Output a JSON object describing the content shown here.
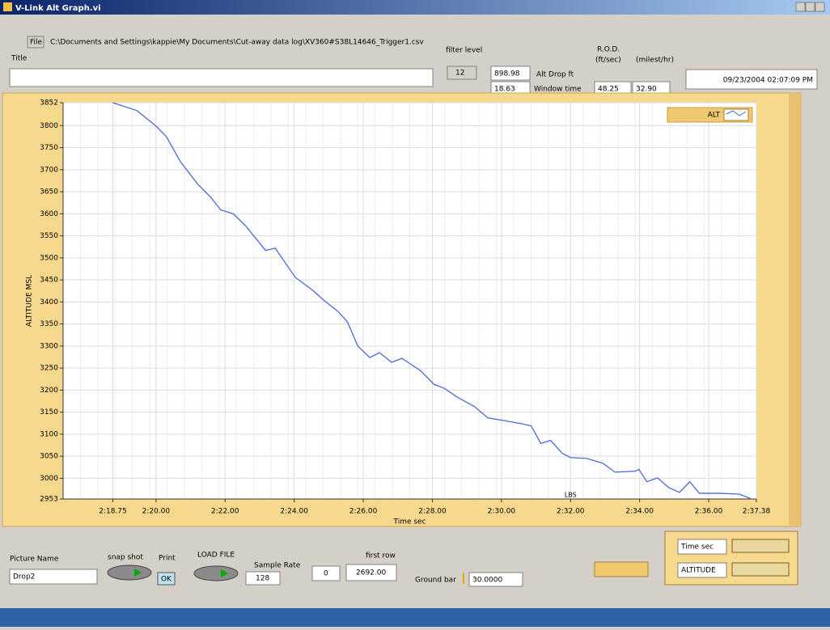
{
  "window": {
    "title": "V-Link Alt Graph.vi"
  },
  "file": {
    "button": "File",
    "path": "C:\\Documents and Settings\\kappie\\My Documents\\Cut-away data log\\XV360#S38L14646_Trigger1.csv"
  },
  "title_label": "Title",
  "filter_level": {
    "label": "filter level",
    "value": "12"
  },
  "alt_drop": {
    "label": "Alt Drop ft",
    "value": "898.98"
  },
  "window_time": {
    "label": "Window time",
    "value": "18.63"
  },
  "rod": {
    "label": "R.O.D.",
    "ft_units": "(ft/sec)",
    "mi_units": "(milest/hr)",
    "ft_value": "48.25",
    "mi_value": "32.90"
  },
  "timestamp": "09/23/2004 02:07:09 PM",
  "chart_data": {
    "type": "line",
    "xlabel": "Time sec",
    "ylabel": "ALTITUDE MSL",
    "annotation": "LBS",
    "grid": true,
    "x": [
      138.75,
      139.45,
      140.0,
      140.3,
      140.7,
      141.2,
      141.6,
      141.87,
      142.24,
      142.6,
      143.17,
      143.45,
      144.03,
      144.56,
      144.87,
      145.26,
      145.54,
      145.84,
      146.19,
      146.47,
      146.82,
      147.12,
      147.66,
      148.05,
      148.35,
      148.7,
      149.21,
      149.61,
      150.14,
      150.63,
      150.86,
      151.14,
      151.42,
      151.77,
      152.0,
      152.47,
      152.94,
      153.28,
      153.87,
      153.98,
      154.21,
      154.52,
      154.84,
      155.15,
      155.45,
      155.73,
      156.31,
      156.89,
      157.24
    ],
    "series": [
      {
        "name": "ALT",
        "color": "#4a6ad8",
        "values": [
          3852,
          3834,
          3799,
          3775,
          3719,
          3668,
          3636,
          3609,
          3600,
          3572,
          3517,
          3522,
          3456,
          3425,
          3403,
          3379,
          3355,
          3300,
          3274,
          3285,
          3263,
          3272,
          3244,
          3213,
          3204,
          3185,
          3163,
          3137,
          3130,
          3123,
          3119,
          3079,
          3086,
          3056,
          3047,
          3045,
          3034,
          3014,
          3016,
          3020,
          2992,
          3001,
          2979,
          2968,
          2992,
          2966,
          2966,
          2964,
          2953
        ]
      }
    ],
    "xlim": [
      137.31,
      157.38
    ],
    "xticks": [
      {
        "value": 138.75,
        "label": "2:18.75"
      },
      {
        "value": 140,
        "label": "2:20.00"
      },
      {
        "value": 142,
        "label": "2:22.00"
      },
      {
        "value": 144,
        "label": "2:24.00"
      },
      {
        "value": 146,
        "label": "2:26.00"
      },
      {
        "value": 148,
        "label": "2:28.00"
      },
      {
        "value": 150,
        "label": "2:30.00"
      },
      {
        "value": 152,
        "label": "2:32.00"
      },
      {
        "value": 154,
        "label": "2:34.00"
      },
      {
        "value": 156,
        "label": "2:36.00"
      },
      {
        "value": 157.38,
        "label": "2:37.38"
      }
    ],
    "ylim": [
      2953,
      3852
    ],
    "yticks": [
      2953,
      3000,
      3050,
      3100,
      3150,
      3200,
      3250,
      3300,
      3350,
      3400,
      3450,
      3500,
      3550,
      3600,
      3650,
      3700,
      3750,
      3800,
      3852
    ]
  },
  "controls": {
    "picture_name": {
      "label": "Picture Name",
      "value": "Drop2"
    },
    "snap_shot": "snap shot",
    "print": {
      "label": "Print",
      "button": "OK"
    },
    "load_file": "LOAD FILE",
    "sample_rate": {
      "label": "Sample Rate",
      "value": "128"
    },
    "offset": "0",
    "first_row": {
      "label": "first row",
      "value": "2692.00"
    },
    "ground_bar": {
      "label": "Ground bar",
      "value": "30.0000"
    }
  },
  "scale_legend": {
    "x_name": "Time sec",
    "y_name": "ALTITUDE"
  }
}
